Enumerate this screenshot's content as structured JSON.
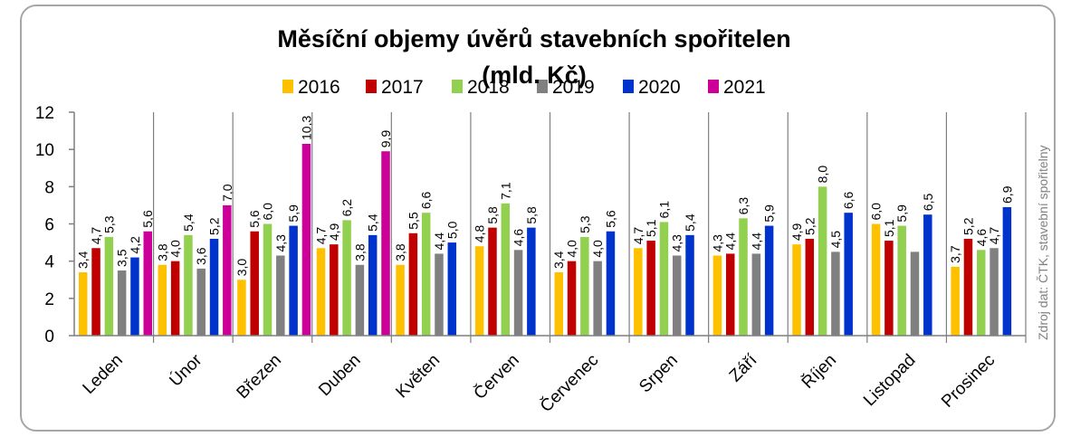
{
  "chart_data": {
    "type": "bar",
    "title_line1": "Měsíční objemy úvěrů stavebních spořitelen",
    "title_line2": "(mld. Kč)",
    "categories": [
      "Leden",
      "Únor",
      "Březen",
      "Duben",
      "Květen",
      "Červen",
      "Červenec",
      "Srpen",
      "Září",
      "Říjen",
      "Listopad",
      "Prosinec"
    ],
    "series": [
      {
        "name": "2016",
        "color": "#ffc000",
        "values": [
          3.4,
          3.8,
          3.0,
          4.7,
          3.8,
          4.8,
          3.4,
          4.7,
          4.3,
          4.9,
          6.0,
          3.7
        ],
        "labels": [
          "3,4",
          "3,8",
          "3,0",
          "4,7",
          "3,8",
          "4,8",
          "3,4",
          "4,7",
          "4,3",
          "4,9",
          "6,0",
          "3,7"
        ]
      },
      {
        "name": "2017",
        "color": "#c00000",
        "values": [
          4.7,
          4.0,
          5.6,
          4.9,
          5.5,
          5.8,
          4.0,
          5.1,
          4.4,
          5.2,
          5.1,
          5.2
        ],
        "labels": [
          "4,7",
          "4,0",
          "5,6",
          "4,9",
          "5,5",
          "5,8",
          "4,0",
          "5,1",
          "4,4",
          "5,2",
          "5,1",
          "5,2"
        ]
      },
      {
        "name": "2018",
        "color": "#92d050",
        "values": [
          5.3,
          5.4,
          6.0,
          6.2,
          6.6,
          7.1,
          5.3,
          6.1,
          6.3,
          8.0,
          5.9,
          4.6
        ],
        "labels": [
          "5,3",
          "5,4",
          "6,0",
          "6,2",
          "6,6",
          "7,1",
          "5,3",
          "6,1",
          "6,3",
          "8,0",
          "5,9",
          "4,6"
        ]
      },
      {
        "name": "2019",
        "color": "#808080",
        "values": [
          3.5,
          3.6,
          4.3,
          3.8,
          4.4,
          4.6,
          4.0,
          4.3,
          4.4,
          4.5,
          4.5,
          4.7
        ],
        "labels": [
          "3,5",
          "3,6",
          "4,3",
          "3,8",
          "4,4",
          "4,6",
          "4,0",
          "4,3",
          "4,4",
          "4,5",
          "",
          "4,7"
        ]
      },
      {
        "name": "2020",
        "color": "#0033cc",
        "values": [
          4.2,
          5.2,
          5.9,
          5.4,
          5.0,
          5.8,
          5.6,
          5.4,
          5.9,
          6.6,
          6.5,
          6.9
        ],
        "labels": [
          "4,2",
          "5,2",
          "5,9",
          "5,4",
          "5,0",
          "5,8",
          "5,6",
          "5,4",
          "5,9",
          "6,6",
          "6,5",
          "6,9"
        ]
      },
      {
        "name": "2021",
        "color": "#cc0099",
        "values": [
          5.6,
          7.0,
          10.3,
          9.9,
          null,
          null,
          null,
          null,
          null,
          null,
          null,
          null
        ],
        "labels": [
          "5,6",
          "7,0",
          "10,3",
          "9,9",
          "",
          "",
          "",
          "",
          "",
          "",
          "",
          ""
        ]
      }
    ],
    "yticks": [
      "0",
      "2",
      "4",
      "6",
      "8",
      "10",
      "12"
    ],
    "ylim": [
      0,
      12
    ],
    "grid": false,
    "legend_position": "top",
    "source_note": "Zdroj dat: ČTK, stavební spořitelny"
  }
}
